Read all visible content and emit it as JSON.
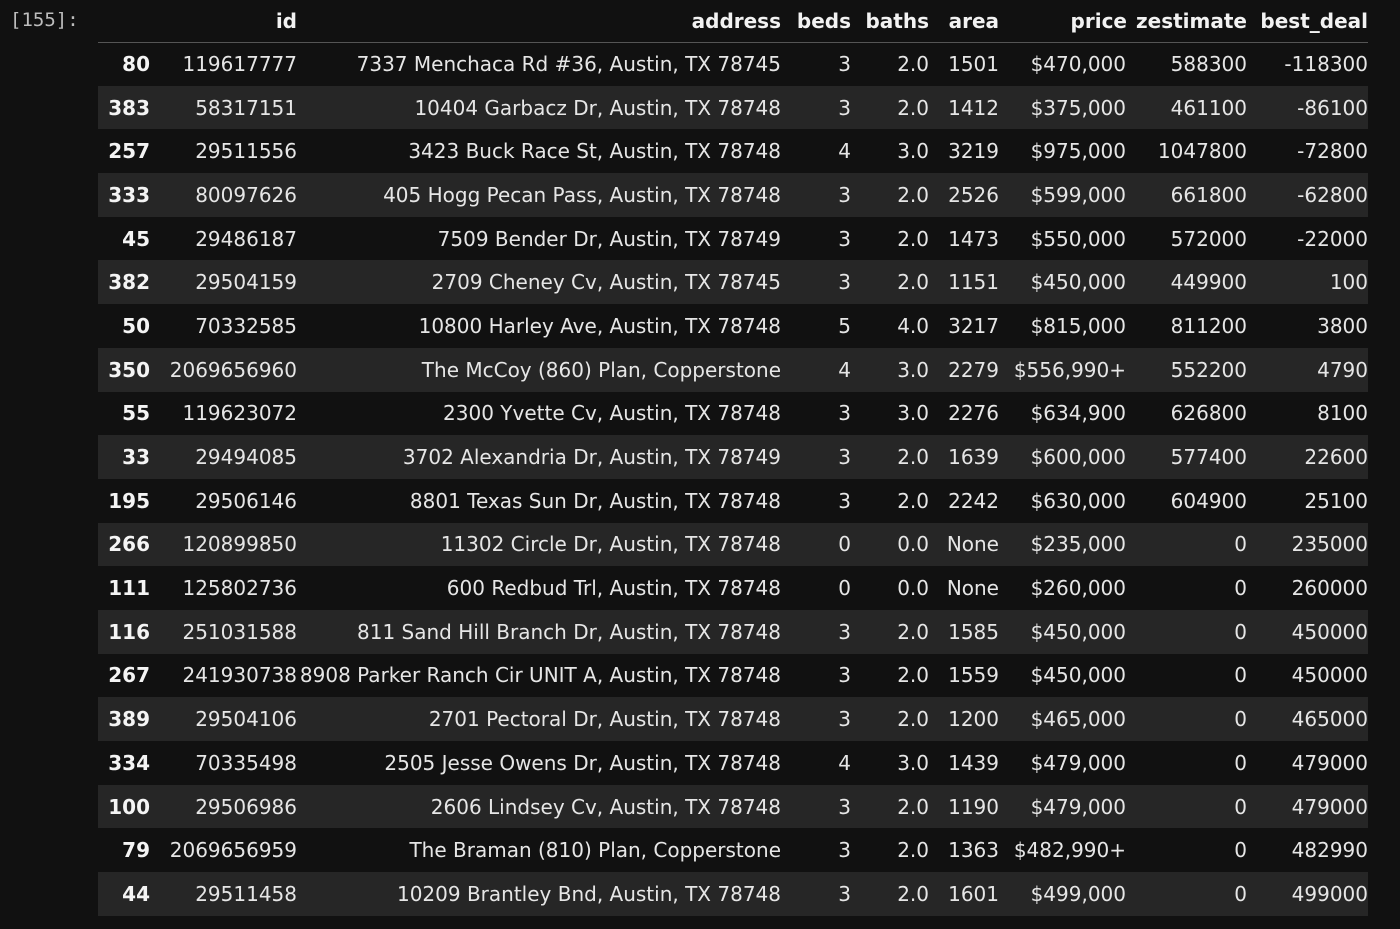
{
  "cell": {
    "prompt": "[155]:"
  },
  "table": {
    "columns": [
      "",
      "id",
      "address",
      "beds",
      "baths",
      "area",
      "price",
      "zestimate",
      "best_deal"
    ],
    "rows": [
      [
        "80",
        "119617777",
        "7337 Menchaca Rd #36, Austin, TX 78745",
        "3",
        "2.0",
        "1501",
        "$470,000",
        "588300",
        "-118300"
      ],
      [
        "383",
        "58317151",
        "10404 Garbacz Dr, Austin, TX 78748",
        "3",
        "2.0",
        "1412",
        "$375,000",
        "461100",
        "-86100"
      ],
      [
        "257",
        "29511556",
        "3423 Buck Race St, Austin, TX 78748",
        "4",
        "3.0",
        "3219",
        "$975,000",
        "1047800",
        "-72800"
      ],
      [
        "333",
        "80097626",
        "405 Hogg Pecan Pass, Austin, TX 78748",
        "3",
        "2.0",
        "2526",
        "$599,000",
        "661800",
        "-62800"
      ],
      [
        "45",
        "29486187",
        "7509 Bender Dr, Austin, TX 78749",
        "3",
        "2.0",
        "1473",
        "$550,000",
        "572000",
        "-22000"
      ],
      [
        "382",
        "29504159",
        "2709 Cheney Cv, Austin, TX 78745",
        "3",
        "2.0",
        "1151",
        "$450,000",
        "449900",
        "100"
      ],
      [
        "50",
        "70332585",
        "10800 Harley Ave, Austin, TX 78748",
        "5",
        "4.0",
        "3217",
        "$815,000",
        "811200",
        "3800"
      ],
      [
        "350",
        "2069656960",
        "The McCoy (860) Plan, Copperstone",
        "4",
        "3.0",
        "2279",
        "$556,990+",
        "552200",
        "4790"
      ],
      [
        "55",
        "119623072",
        "2300 Yvette Cv, Austin, TX 78748",
        "3",
        "3.0",
        "2276",
        "$634,900",
        "626800",
        "8100"
      ],
      [
        "33",
        "29494085",
        "3702 Alexandria Dr, Austin, TX 78749",
        "3",
        "2.0",
        "1639",
        "$600,000",
        "577400",
        "22600"
      ],
      [
        "195",
        "29506146",
        "8801 Texas Sun Dr, Austin, TX 78748",
        "3",
        "2.0",
        "2242",
        "$630,000",
        "604900",
        "25100"
      ],
      [
        "266",
        "120899850",
        "11302 Circle Dr, Austin, TX 78748",
        "0",
        "0.0",
        "None",
        "$235,000",
        "0",
        "235000"
      ],
      [
        "111",
        "125802736",
        "600 Redbud Trl, Austin, TX 78748",
        "0",
        "0.0",
        "None",
        "$260,000",
        "0",
        "260000"
      ],
      [
        "116",
        "251031588",
        "811 Sand Hill Branch Dr, Austin, TX 78748",
        "3",
        "2.0",
        "1585",
        "$450,000",
        "0",
        "450000"
      ],
      [
        "267",
        "241930738",
        "8908 Parker Ranch Cir UNIT A, Austin, TX 78748",
        "3",
        "2.0",
        "1559",
        "$450,000",
        "0",
        "450000"
      ],
      [
        "389",
        "29504106",
        "2701 Pectoral Dr, Austin, TX 78748",
        "3",
        "2.0",
        "1200",
        "$465,000",
        "0",
        "465000"
      ],
      [
        "334",
        "70335498",
        "2505 Jesse Owens Dr, Austin, TX 78748",
        "4",
        "3.0",
        "1439",
        "$479,000",
        "0",
        "479000"
      ],
      [
        "100",
        "29506986",
        "2606 Lindsey Cv, Austin, TX 78748",
        "3",
        "2.0",
        "1190",
        "$479,000",
        "0",
        "479000"
      ],
      [
        "79",
        "2069656959",
        "The Braman (810) Plan, Copperstone",
        "3",
        "2.0",
        "1363",
        "$482,990+",
        "0",
        "482990"
      ],
      [
        "44",
        "29511458",
        "10209 Brantley Bnd, Austin, TX 78748",
        "3",
        "2.0",
        "1601",
        "$499,000",
        "0",
        "499000"
      ]
    ]
  }
}
